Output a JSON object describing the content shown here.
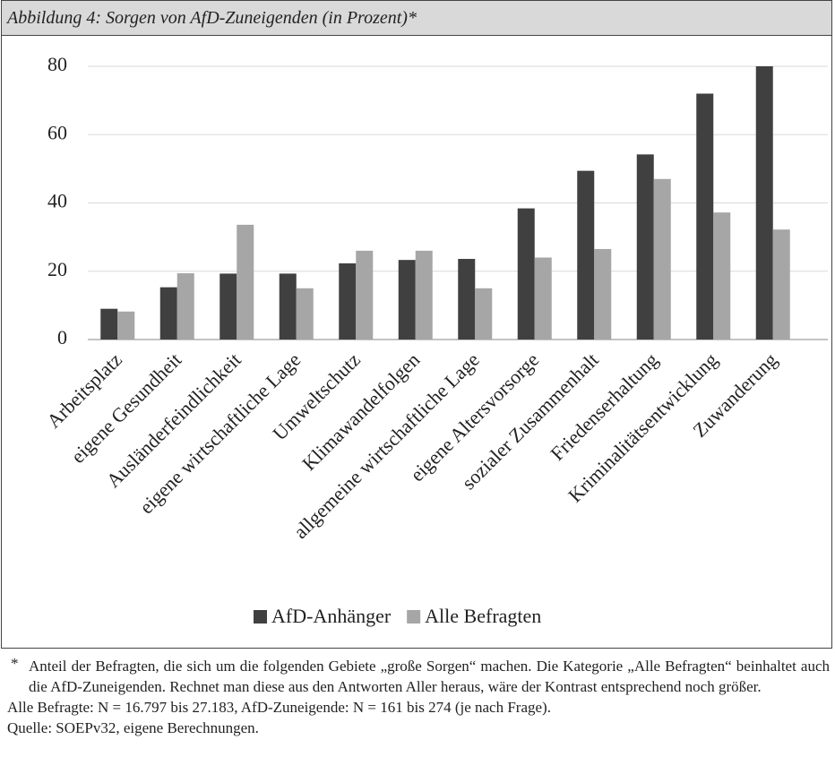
{
  "header": {
    "title": "Abbildung 4:   Sorgen von AfD-Zuneigenden (in Prozent)*"
  },
  "chart_data": {
    "type": "bar",
    "categories": [
      "Arbeitsplatz",
      "eigene Gesundheit",
      "Ausländerfeindlichkeit",
      "eigene wirtschaftliche Lage",
      "Umweltschutz",
      "Klimawandelfolgen",
      "allgemeine wirtschaftliche Lage",
      "eigene Altersvorsorge",
      "sozialer Zusammenhalt",
      "Friedenserhaltung",
      "Kriminalitätsentwicklung",
      "Zuwanderung"
    ],
    "series": [
      {
        "name": "AfD-Anhänger",
        "color": "#404040",
        "values": [
          9,
          15.3,
          19.3,
          19.3,
          22.3,
          23.3,
          23.6,
          38.4,
          49.4,
          54.2,
          72,
          80
        ]
      },
      {
        "name": "Alle Befragten",
        "color": "#a6a6a6",
        "values": [
          8.2,
          19.4,
          33.6,
          15,
          26,
          26,
          15,
          24,
          26.5,
          47,
          37.2,
          32.2
        ]
      }
    ],
    "ylim": [
      0,
      80
    ],
    "yticks": [
      0,
      20,
      40,
      60,
      80
    ],
    "grid": true,
    "legend": "bottom"
  },
  "footnotes": {
    "marker": "*",
    "note": "Anteil der Befragten, die sich um die folgenden Gebiete „große Sorgen“ machen. Die Kategorie „Alle Befragten“ beinhaltet auch die AfD-Zuneigenden. Rechnet man diese aus den Antworten Aller heraus, wäre der Kontrast entsprechend noch größer.",
    "sample": "Alle Befragte: N = 16.797 bis 27.183, AfD-Zuneigende: N = 161 bis 274 (je nach Frage).",
    "source": "Quelle: SOEPv32, eigene Berechnungen."
  }
}
